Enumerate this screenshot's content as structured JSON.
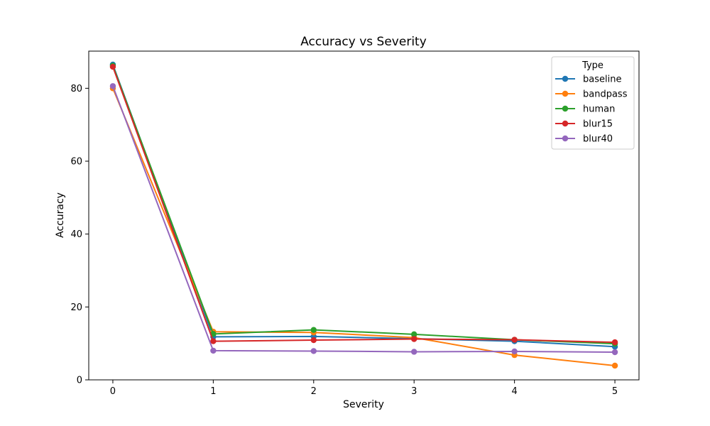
{
  "chart_data": {
    "type": "line",
    "title": "Accuracy vs Severity",
    "xlabel": "Severity",
    "ylabel": "Accuracy",
    "x": [
      0,
      1,
      2,
      3,
      4,
      5
    ],
    "xlim": [
      -0.24,
      5.24
    ],
    "ylim": [
      0,
      90.2
    ],
    "xticks": [
      0,
      1,
      2,
      3,
      4,
      5
    ],
    "yticks": [
      0,
      20,
      40,
      60,
      80
    ],
    "grid": false,
    "legend": {
      "title": "Type",
      "placement": "top-right"
    },
    "series": [
      {
        "name": "baseline",
        "color": "#1f77b4",
        "values": [
          86.5,
          11.8,
          11.9,
          11.3,
          10.6,
          9.1
        ]
      },
      {
        "name": "bandpass",
        "color": "#ff7f0e",
        "values": [
          80.0,
          13.2,
          13.0,
          11.6,
          6.8,
          3.9
        ]
      },
      {
        "name": "human",
        "color": "#2ca02c",
        "values": [
          86.2,
          12.6,
          13.7,
          12.5,
          11.0,
          9.9
        ]
      },
      {
        "name": "blur15",
        "color": "#d62728",
        "values": [
          85.9,
          10.6,
          10.9,
          11.2,
          11.0,
          10.3
        ]
      },
      {
        "name": "blur40",
        "color": "#9467bd",
        "values": [
          80.6,
          8.0,
          7.9,
          7.7,
          7.8,
          7.6
        ]
      }
    ]
  }
}
